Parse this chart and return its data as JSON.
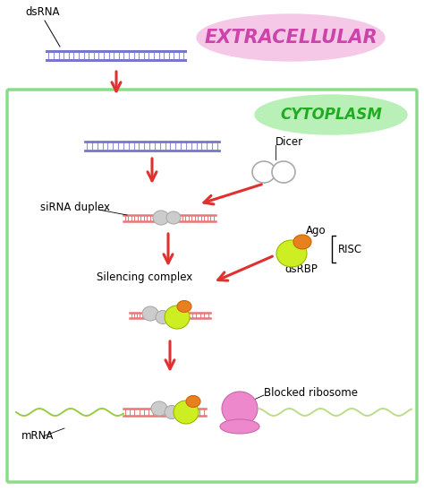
{
  "extracellular_label": "EXTRACELLULAR",
  "cytoplasm_label": "CYTOPLASM",
  "extracellular_bg": "#f5c8e8",
  "cytoplasm_bg": "#b8f0b8",
  "dsrna_label": "dsRNA",
  "dicer_label": "Dicer",
  "sirna_label": "siRNA duplex",
  "ago_label": "Ago",
  "dsrbp_label": "dsRBP",
  "risc_label": "RISC",
  "silencing_label": "Silencing complex",
  "mrna_label": "mRNA",
  "blocked_label": "Blocked ribosome",
  "arrow_color": "#e03030",
  "rna_blue": "#7777cc",
  "rna_pink": "#e87878",
  "protein_gray": "#cccccc",
  "protein_green": "#ccee22",
  "protein_orange": "#e88020",
  "ribosome_pink": "#ee88cc",
  "border_green": "#88dd88",
  "mrna_green": "#99cc44"
}
